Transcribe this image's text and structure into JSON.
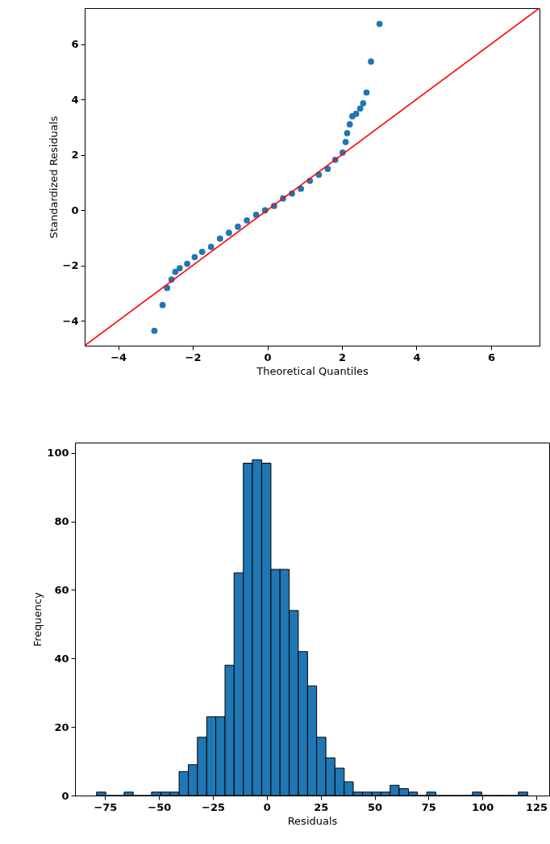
{
  "chart_data": [
    {
      "type": "scatter",
      "xlabel": "Theoretical Quantiles",
      "ylabel": "Standardized Residuals",
      "xlim": [
        -4.9,
        7.3
      ],
      "ylim": [
        -4.9,
        7.3
      ],
      "xticks": [
        -4,
        -2,
        0,
        2,
        4,
        6
      ],
      "yticks": [
        -4,
        -2,
        0,
        2,
        4,
        6
      ],
      "grid": false,
      "series": [
        {
          "type": "scatter",
          "marker": "circle",
          "color": "#1f77b4",
          "x": [
            -3.03,
            -2.81,
            -2.69,
            -2.57,
            -2.47,
            -2.35,
            -2.15,
            -1.95,
            -1.75,
            -1.51,
            -1.27,
            -1.03,
            -0.79,
            -0.55,
            -0.3,
            -0.06,
            0.18,
            0.42,
            0.66,
            0.9,
            1.14,
            1.38,
            1.62,
            1.82,
            2.02,
            2.1,
            2.14,
            2.21,
            2.28,
            2.38,
            2.49,
            2.57,
            2.66,
            2.78,
            3.01
          ],
          "values": [
            -4.36,
            -3.43,
            -2.81,
            -2.51,
            -2.23,
            -2.1,
            -1.94,
            -1.7,
            -1.51,
            -1.33,
            -1.03,
            -0.82,
            -0.6,
            -0.37,
            -0.17,
            -0.01,
            0.15,
            0.42,
            0.6,
            0.77,
            1.06,
            1.28,
            1.49,
            1.82,
            2.08,
            2.46,
            2.78,
            3.1,
            3.39,
            3.48,
            3.67,
            3.86,
            4.25,
            5.37,
            6.73
          ]
        },
        {
          "type": "line",
          "color": "#ff0000",
          "x": [
            -4.9,
            7.3
          ],
          "values": [
            -4.9,
            7.3
          ]
        }
      ]
    },
    {
      "type": "histogram",
      "xlabel": "Residuals",
      "ylabel": "Frequency",
      "xlim": [
        -89,
        131
      ],
      "ylim": [
        0,
        103
      ],
      "xticks": [
        -75,
        -50,
        -25,
        0,
        25,
        50,
        75,
        100,
        125
      ],
      "yticks": [
        0,
        20,
        40,
        60,
        80,
        100
      ],
      "grid": false,
      "color": "#1f77b4",
      "bins": [
        -79.0,
        -74.7,
        -70.5,
        -66.2,
        -62.0,
        -57.7,
        -53.5,
        -49.2,
        -44.9,
        -40.7,
        -36.4,
        -32.2,
        -27.9,
        -23.7,
        -19.4,
        -15.2,
        -10.9,
        -6.7,
        -2.4,
        1.9,
        6.1,
        10.4,
        14.6,
        18.9,
        23.1,
        27.4,
        31.6,
        35.9,
        40.1,
        44.4,
        48.7,
        52.9,
        57.2,
        61.4,
        65.7,
        69.9,
        74.2,
        78.4,
        82.7,
        86.9,
        91.2,
        95.4,
        99.7,
        103.9,
        108.2,
        112.4,
        116.7,
        121.0
      ],
      "values": [
        1,
        0,
        0,
        1,
        0,
        0,
        1,
        1,
        1,
        7,
        9,
        17,
        23,
        23,
        38,
        65,
        97,
        98,
        97,
        66,
        66,
        54,
        42,
        32,
        17,
        11,
        8,
        4,
        1,
        1,
        1,
        1,
        3,
        2,
        1,
        0,
        1,
        0,
        0,
        0,
        0,
        1,
        0,
        0,
        0,
        0,
        1
      ]
    }
  ]
}
